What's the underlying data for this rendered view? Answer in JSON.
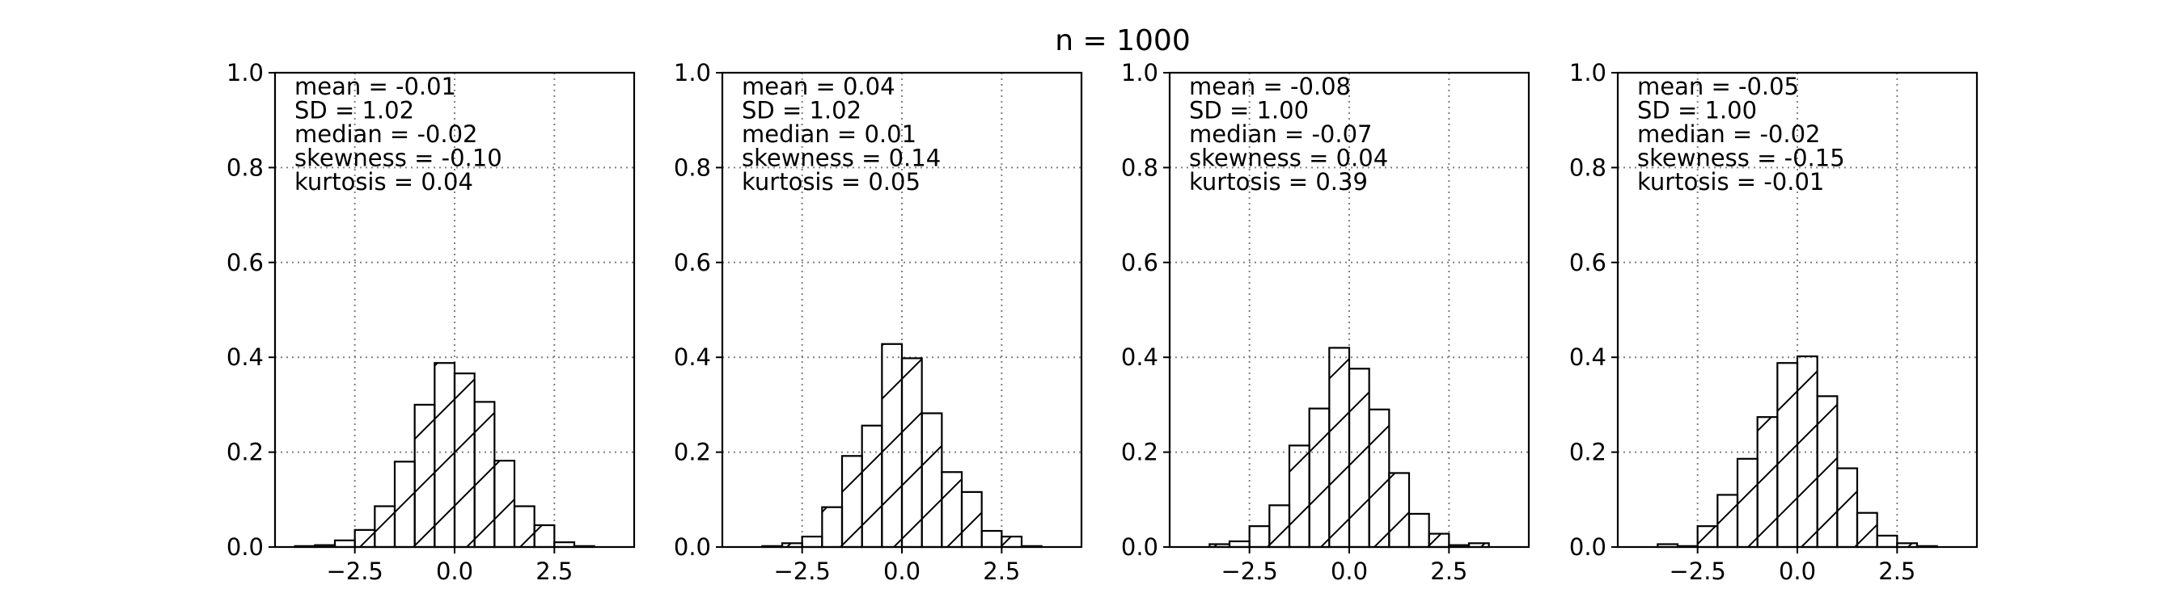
{
  "title": "n = 1000",
  "chart_data": [
    {
      "type": "bar",
      "title": "",
      "xlabel": "",
      "ylabel": "",
      "xlim": [
        -4.5,
        4.5
      ],
      "ylim": [
        0.0,
        1.0
      ],
      "xticks": [
        -2.5,
        0.0,
        2.5
      ],
      "xtick_labels": [
        "−2.5",
        "0.0",
        "2.5"
      ],
      "yticks": [
        0.0,
        0.2,
        0.4,
        0.6,
        0.8,
        1.0
      ],
      "ytick_labels": [
        "0.0",
        "0.2",
        "0.4",
        "0.6",
        "0.8",
        "1.0"
      ],
      "grid": true,
      "bin_edges": [
        -4.0,
        -3.5,
        -3.0,
        -2.5,
        -2.0,
        -1.5,
        -1.0,
        -0.5,
        0.0,
        0.5,
        1.0,
        1.5,
        2.0,
        2.5,
        3.0,
        3.5,
        4.0
      ],
      "values": [
        0.002,
        0.004,
        0.014,
        0.036,
        0.086,
        0.18,
        0.3,
        0.388,
        0.366,
        0.306,
        0.182,
        0.086,
        0.046,
        0.01,
        0.002,
        0.0
      ],
      "stats": [
        "mean = -0.01",
        "SD = 1.02",
        "median = -0.02",
        "skewness = -0.10",
        "kurtosis = 0.04"
      ]
    },
    {
      "type": "bar",
      "title": "",
      "xlabel": "",
      "ylabel": "",
      "xlim": [
        -4.5,
        4.5
      ],
      "ylim": [
        0.0,
        1.0
      ],
      "xticks": [
        -2.5,
        0.0,
        2.5
      ],
      "xtick_labels": [
        "−2.5",
        "0.0",
        "2.5"
      ],
      "yticks": [
        0.0,
        0.2,
        0.4,
        0.6,
        0.8,
        1.0
      ],
      "ytick_labels": [
        "0.0",
        "0.2",
        "0.4",
        "0.6",
        "0.8",
        "1.0"
      ],
      "grid": true,
      "bin_edges": [
        -4.0,
        -3.5,
        -3.0,
        -2.5,
        -2.0,
        -1.5,
        -1.0,
        -0.5,
        0.0,
        0.5,
        1.0,
        1.5,
        2.0,
        2.5,
        3.0,
        3.5,
        4.0
      ],
      "values": [
        0.0,
        0.002,
        0.008,
        0.022,
        0.084,
        0.192,
        0.256,
        0.428,
        0.398,
        0.282,
        0.158,
        0.116,
        0.034,
        0.022,
        0.002,
        0.0
      ],
      "stats": [
        "mean = 0.04",
        "SD = 1.02",
        "median = 0.01",
        "skewness = 0.14",
        "kurtosis = 0.05"
      ]
    },
    {
      "type": "bar",
      "title": "",
      "xlabel": "",
      "ylabel": "",
      "xlim": [
        -4.5,
        4.5
      ],
      "ylim": [
        0.0,
        1.0
      ],
      "xticks": [
        -2.5,
        0.0,
        2.5
      ],
      "xtick_labels": [
        "−2.5",
        "0.0",
        "2.5"
      ],
      "yticks": [
        0.0,
        0.2,
        0.4,
        0.6,
        0.8,
        1.0
      ],
      "ytick_labels": [
        "0.0",
        "0.2",
        "0.4",
        "0.6",
        "0.8",
        "1.0"
      ],
      "grid": true,
      "bin_edges": [
        -4.0,
        -3.5,
        -3.0,
        -2.5,
        -2.0,
        -1.5,
        -1.0,
        -0.5,
        0.0,
        0.5,
        1.0,
        1.5,
        2.0,
        2.5,
        3.0,
        3.5,
        4.0
      ],
      "values": [
        0.0,
        0.006,
        0.012,
        0.044,
        0.088,
        0.214,
        0.292,
        0.42,
        0.376,
        0.29,
        0.156,
        0.07,
        0.028,
        0.004,
        0.008,
        0.0
      ],
      "stats": [
        "mean = -0.08",
        "SD = 1.00",
        "median = -0.07",
        "skewness = 0.04",
        "kurtosis = 0.39"
      ]
    },
    {
      "type": "bar",
      "title": "",
      "xlabel": "",
      "ylabel": "",
      "xlim": [
        -4.5,
        4.5
      ],
      "ylim": [
        0.0,
        1.0
      ],
      "xticks": [
        -2.5,
        0.0,
        2.5
      ],
      "xtick_labels": [
        "−2.5",
        "0.0",
        "2.5"
      ],
      "yticks": [
        0.0,
        0.2,
        0.4,
        0.6,
        0.8,
        1.0
      ],
      "ytick_labels": [
        "0.0",
        "0.2",
        "0.4",
        "0.6",
        "0.8",
        "1.0"
      ],
      "grid": true,
      "bin_edges": [
        -4.0,
        -3.5,
        -3.0,
        -2.5,
        -2.0,
        -1.5,
        -1.0,
        -0.5,
        0.0,
        0.5,
        1.0,
        1.5,
        2.0,
        2.5,
        3.0,
        3.5,
        4.0
      ],
      "values": [
        0.0,
        0.006,
        0.002,
        0.044,
        0.11,
        0.186,
        0.274,
        0.388,
        0.402,
        0.318,
        0.166,
        0.072,
        0.024,
        0.008,
        0.002,
        0.0
      ],
      "stats": [
        "mean = -0.05",
        "SD = 1.00",
        "median = -0.02",
        "skewness = -0.15",
        "kurtosis = -0.01"
      ]
    }
  ]
}
